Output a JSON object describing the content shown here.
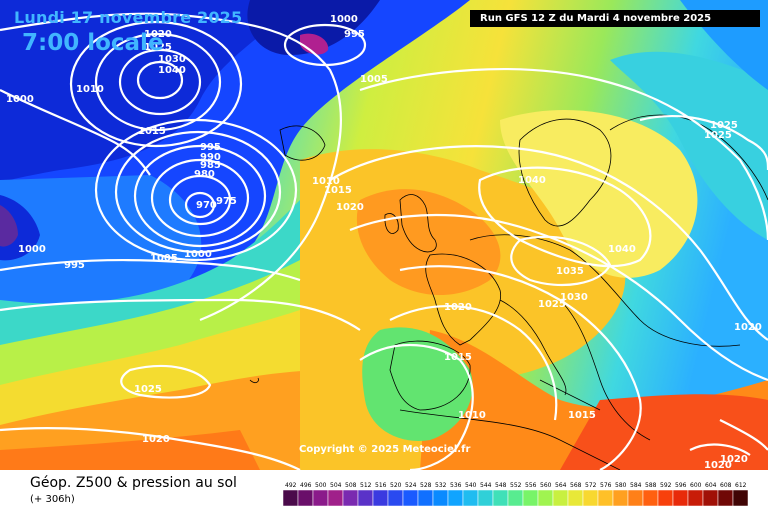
{
  "header": {
    "date": "Lundi 17 novembre 2025",
    "time": "7:00 locale",
    "run": "Run GFS 12 Z du Mardi 4 novembre 2025"
  },
  "copyright": "Copyright © 2025 Meteociel.fr",
  "footer": {
    "title": "Géop. Z500 & pression au sol",
    "subtitle": "(+ 306h)"
  },
  "legend": {
    "unit_values": [
      "492",
      "496",
      "500",
      "504",
      "508",
      "512",
      "516",
      "520",
      "524",
      "528",
      "532",
      "536",
      "540",
      "544",
      "548",
      "552",
      "556",
      "560",
      "564",
      "568",
      "572",
      "576",
      "580",
      "584",
      "588",
      "592",
      "596",
      "600",
      "604",
      "608",
      "612"
    ],
    "colors": [
      "#4a0a4a",
      "#6a0f6a",
      "#8a1a8a",
      "#a0208a",
      "#7a2ab0",
      "#5a32c8",
      "#3a3ae0",
      "#2a4af0",
      "#1a5aff",
      "#1070ff",
      "#0a8aff",
      "#10a4ff",
      "#20bcf0",
      "#30d0d8",
      "#40e0b8",
      "#58ec90",
      "#78f468",
      "#a0f450",
      "#c8f040",
      "#e8e838",
      "#f8d830",
      "#ffc028",
      "#ffa020",
      "#ff8018",
      "#ff6010",
      "#f8400c",
      "#e82a0a",
      "#c81c08",
      "#a01006",
      "#700806",
      "#400404"
    ]
  },
  "isobar_labels": [
    "1000",
    "995",
    "1020",
    "1025",
    "1030",
    "1040",
    "1010",
    "1000",
    "1015",
    "995",
    "990",
    "985",
    "980",
    "975",
    "970",
    "1005",
    "1000",
    "1005",
    "1010",
    "1015",
    "1020",
    "1000",
    "995",
    "1040",
    "1040",
    "1035",
    "1030",
    "1025",
    "1020",
    "1015",
    "1010",
    "1025",
    "1020",
    "1015",
    "1020",
    "1020",
    "1025",
    "1025",
    "1020"
  ],
  "colors": {
    "title_blue": "#41b6ff",
    "isobar": "#ffffff",
    "coastline": "#000000"
  }
}
